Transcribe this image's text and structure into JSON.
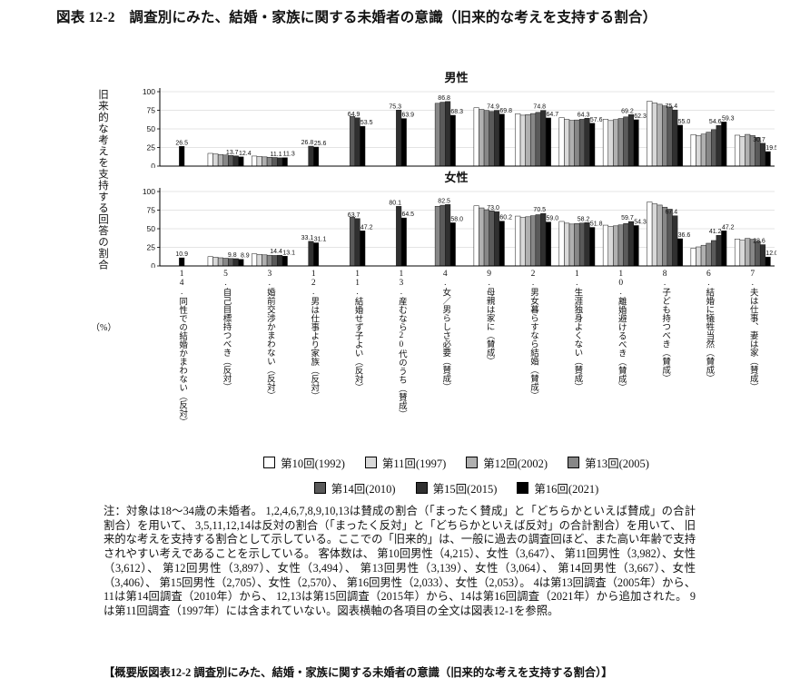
{
  "figure": {
    "title": "図表 12-2　調査別にみた、結婚・家族に関する未婚者の意識（旧来的な考えを支持する割合）"
  },
  "y_axis": {
    "label": "旧来的な考えを支持する回答の割合",
    "unit": "（%）"
  },
  "chart_data": {
    "type": "bar",
    "grid": true,
    "legend_position": "bottom",
    "ylim": [
      0,
      100
    ],
    "yticks": [
      0,
      25,
      50,
      75,
      100
    ],
    "categories": [
      "14.同性での結婚かまわない（反対）",
      "5.自己目標持つべき（反対）",
      "3.婚前交渉かまわない（反対）",
      "12.男は仕事より家族（反対）",
      "11.結婚せず子よい（反対）",
      "13.産むなら20代のうち（賛成）",
      "4.女／男らしさ必要（賛成）",
      "9.母親は家に（賛成）",
      "2.男女暮らすなら結婚（賛成）",
      "1.生涯独身よくない（賛成）",
      "10.離婚避けるべき（賛成）",
      "8.子ども持つべき（賛成）",
      "6.結婚に犠牲当然（賛成）",
      "7.夫は仕事、妻は家（賛成）"
    ],
    "legend": [
      {
        "label": "第10回(1992)",
        "color": "#ffffff"
      },
      {
        "label": "第11回(1997)",
        "color": "#d9d9d9"
      },
      {
        "label": "第12回(2002)",
        "color": "#b0b0b0"
      },
      {
        "label": "第13回(2005)",
        "color": "#878787"
      },
      {
        "label": "第14回(2010)",
        "color": "#5a5a5a"
      },
      {
        "label": "第15回(2015)",
        "color": "#303030"
      },
      {
        "label": "第16回(2021)",
        "color": "#000000"
      }
    ],
    "panels": [
      {
        "title": "男性",
        "series": [
          {
            "name": "第10回(1992)",
            "color": "#ffffff",
            "values": [
              null,
              17.1,
              13.5,
              null,
              null,
              null,
              null,
              78.4,
              70.3,
              65.1,
              63.0,
              87.2,
              42.3,
              41.5
            ]
          },
          {
            "name": "第11回(1997)",
            "color": "#d9d9d9",
            "values": [
              null,
              16.3,
              12.9,
              null,
              null,
              null,
              null,
              null,
              68.4,
              62.8,
              61.2,
              84.8,
              40.8,
              39.8
            ]
          },
          {
            "name": "第12回(2002)",
            "color": "#b0b0b0",
            "values": [
              null,
              15.6,
              12.4,
              null,
              null,
              null,
              null,
              76.2,
              69.2,
              61.5,
              62.5,
              83.1,
              43.0,
              42.6
            ]
          },
          {
            "name": "第13回(2005)",
            "color": "#878787",
            "values": [
              null,
              14.9,
              11.9,
              null,
              null,
              null,
              84.4,
              74.7,
              70.6,
              62.0,
              64.0,
              81.0,
              45.6,
              41.0
            ]
          },
          {
            "name": "第14回(2010)",
            "color": "#5a5a5a",
            "values": [
              null,
              14.3,
              11.6,
              null,
              66.7,
              null,
              85.9,
              73.5,
              72.2,
              62.9,
              66.1,
              79.5,
              49.0,
              38.5
            ]
          },
          {
            "name": "第15回(2015)",
            "color": "#303030",
            "values": [
              null,
              13.7,
              11.1,
              26.8,
              64.9,
              75.3,
              86.8,
              74.9,
              74.8,
              64.3,
              69.2,
              75.4,
              54.6,
              30.7
            ]
          },
          {
            "name": "第16回(2021)",
            "color": "#000000",
            "values": [
              26.5,
              12.4,
              11.3,
              25.6,
              53.5,
              63.9,
              68.3,
              69.8,
              64.7,
              57.6,
              62.3,
              55.0,
              59.3,
              19.5
            ]
          }
        ]
      },
      {
        "title": "女性",
        "series": [
          {
            "name": "第10回(1992)",
            "color": "#ffffff",
            "values": [
              null,
              12.5,
              16.3,
              null,
              null,
              null,
              null,
              80.8,
              67.0,
              59.8,
              54.8,
              85.9,
              24.0,
              36.2
            ]
          },
          {
            "name": "第11回(1997)",
            "color": "#d9d9d9",
            "values": [
              null,
              11.7,
              15.5,
              null,
              null,
              null,
              null,
              null,
              65.2,
              57.5,
              53.0,
              83.5,
              25.6,
              34.5
            ]
          },
          {
            "name": "第12回(2002)",
            "color": "#b0b0b0",
            "values": [
              null,
              11.0,
              14.9,
              null,
              null,
              null,
              null,
              78.0,
              66.1,
              56.3,
              53.9,
              81.8,
              27.8,
              37.0
            ]
          },
          {
            "name": "第13回(2005)",
            "color": "#878787",
            "values": [
              null,
              10.4,
              14.4,
              null,
              null,
              null,
              80.2,
              75.6,
              67.5,
              57.0,
              55.2,
              79.0,
              30.5,
              35.8
            ]
          },
          {
            "name": "第14回(2010)",
            "color": "#5a5a5a",
            "values": [
              null,
              10.0,
              14.1,
              null,
              65.4,
              null,
              81.6,
              74.1,
              68.9,
              57.6,
              57.0,
              76.2,
              34.2,
              33.2
            ]
          },
          {
            "name": "第15回(2015)",
            "color": "#303030",
            "values": [
              null,
              9.8,
              14.4,
              33.1,
              63.7,
              80.1,
              82.5,
              73.0,
              70.5,
              58.2,
              59.7,
              67.4,
              41.2,
              28.6
            ]
          },
          {
            "name": "第16回(2021)",
            "color": "#000000",
            "values": [
              10.9,
              8.9,
              13.1,
              31.1,
              47.2,
              64.5,
              58.0,
              60.2,
              59.0,
              51.8,
              54.3,
              36.6,
              47.2,
              12.0
            ]
          }
        ]
      }
    ]
  },
  "notes": {
    "text": "注：対象は18～34歳の未婚者。 1,2,4,6,7,8,9,10,13は賛成の割合（「まったく賛成」と「どちらかといえば賛成」の合計割合）を用いて、 3,5,11,12,14は反対の割合（「まったく反対」と「どちらかといえば反対」の合計割合）を用いて、 旧来的な考えを支持する割合として示している。ここでの「旧来的」は、一般に過去の調査回ほど、また高い年齢で支持されやすい考えであることを示している。 客体数は、 第10回男性（4,215）、女性（3,647）、 第11回男性（3,982）、女性（3,612）、 第12回男性（3,897）、女性（3,494）、 第13回男性（3,139）、女性（3,064）、 第14回男性（3,667）、女性（3,406）、 第15回男性（2,705）、女性（2,570）、 第16回男性（2,033）、女性（2,053）。 4は第13回調査（2005年）から、11は第14回調査（2010年）から、 12,13は第15回調査（2015年）から、14は第16回調査（2021年）から追加された。 9は第11回調査（1997年）には含まれていない。図表横軸の各項目の全文は図表12-1を参照。"
  },
  "footer": {
    "text": "【概要版図表12-2 調査別にみた、結婚・家族に関する未婚者の意識（旧来的な考えを支持する割合）】"
  }
}
